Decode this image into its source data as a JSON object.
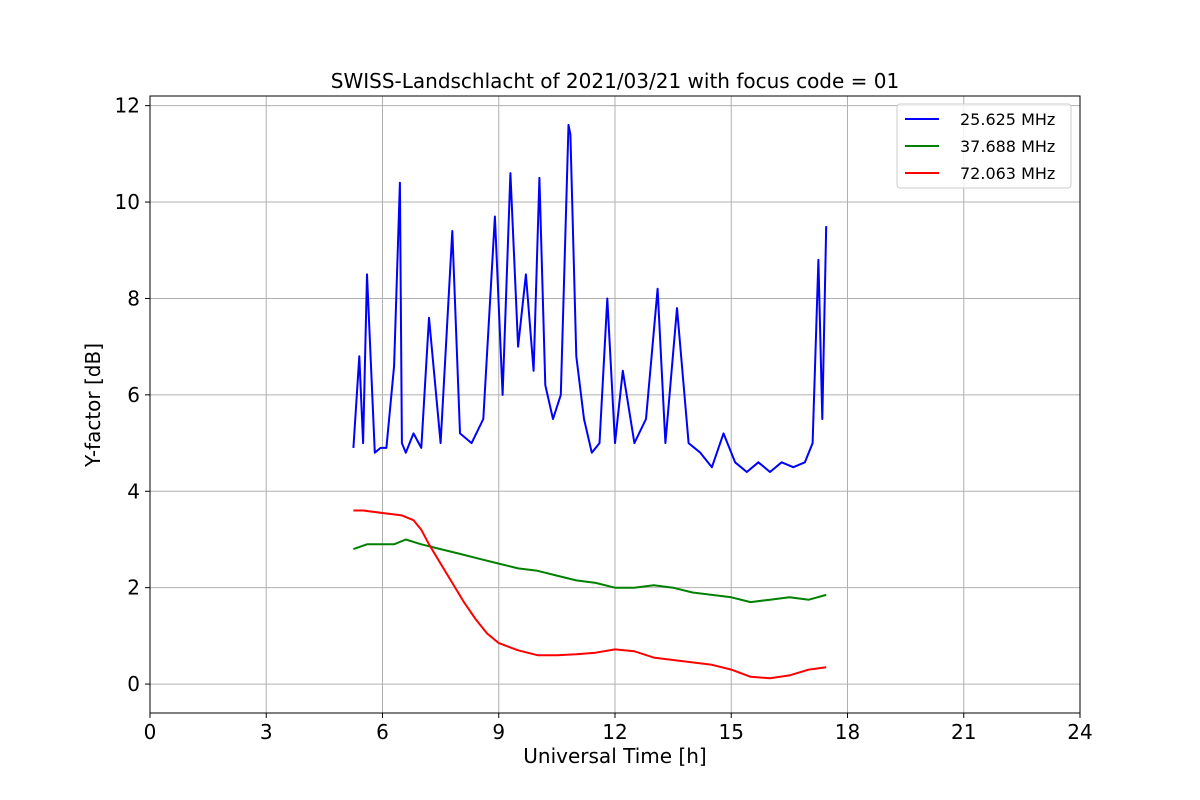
{
  "chart_data": {
    "type": "line",
    "title": "SWISS-Landschlacht of 2021/03/21 with focus code = 01",
    "xlabel": "Universal Time [h]",
    "ylabel": "Y-factor [dB]",
    "xlim": [
      0,
      24
    ],
    "ylim": [
      -0.6,
      12.2
    ],
    "xticks": [
      "0",
      "3",
      "6",
      "9",
      "12",
      "15",
      "18",
      "21",
      "24"
    ],
    "yticks": [
      "0",
      "2",
      "4",
      "6",
      "8",
      "10",
      "12"
    ],
    "grid": true,
    "legend_position": "top-right",
    "series": [
      {
        "name": "25.625 MHz",
        "color": "#0000ff",
        "x": [
          5.25,
          5.4,
          5.5,
          5.6,
          5.8,
          5.95,
          6.1,
          6.3,
          6.45,
          6.5,
          6.6,
          6.8,
          7.0,
          7.2,
          7.5,
          7.8,
          8.0,
          8.3,
          8.6,
          8.9,
          9.1,
          9.3,
          9.5,
          9.7,
          9.9,
          10.05,
          10.2,
          10.4,
          10.6,
          10.8,
          10.85,
          11.0,
          11.2,
          11.4,
          11.6,
          11.8,
          12.0,
          12.2,
          12.5,
          12.8,
          13.1,
          13.3,
          13.6,
          13.9,
          14.2,
          14.5,
          14.8,
          15.1,
          15.4,
          15.7,
          16.0,
          16.3,
          16.6,
          16.9,
          17.1,
          17.25,
          17.35,
          17.45
        ],
        "values": [
          4.9,
          6.8,
          5.0,
          8.5,
          4.8,
          4.9,
          4.9,
          6.6,
          10.4,
          5.0,
          4.8,
          5.2,
          4.9,
          7.6,
          5.0,
          9.4,
          5.2,
          5.0,
          5.5,
          9.7,
          6.0,
          10.6,
          7.0,
          8.5,
          6.5,
          10.5,
          6.2,
          5.5,
          6.0,
          11.6,
          11.4,
          6.8,
          5.5,
          4.8,
          5.0,
          8.0,
          5.0,
          6.5,
          5.0,
          5.5,
          8.2,
          5.0,
          7.8,
          5.0,
          4.8,
          4.5,
          5.2,
          4.6,
          4.4,
          4.6,
          4.4,
          4.6,
          4.5,
          4.6,
          5.0,
          8.8,
          5.5,
          9.5
        ]
      },
      {
        "name": "37.688 MHz",
        "color": "#008000",
        "x": [
          5.25,
          5.6,
          6.0,
          6.3,
          6.6,
          7.0,
          7.5,
          8.0,
          8.5,
          9.0,
          9.5,
          10.0,
          10.5,
          11.0,
          11.5,
          12.0,
          12.5,
          13.0,
          13.5,
          14.0,
          14.5,
          15.0,
          15.5,
          16.0,
          16.5,
          17.0,
          17.45
        ],
        "values": [
          2.8,
          2.9,
          2.9,
          2.9,
          3.0,
          2.9,
          2.8,
          2.7,
          2.6,
          2.5,
          2.4,
          2.35,
          2.25,
          2.15,
          2.1,
          2.0,
          2.0,
          2.05,
          2.0,
          1.9,
          1.85,
          1.8,
          1.7,
          1.75,
          1.8,
          1.75,
          1.85
        ]
      },
      {
        "name": "72.063 MHz",
        "color": "#ff0000",
        "x": [
          5.25,
          5.5,
          6.0,
          6.5,
          6.8,
          7.0,
          7.2,
          7.5,
          7.8,
          8.1,
          8.4,
          8.7,
          9.0,
          9.5,
          10.0,
          10.5,
          11.0,
          11.5,
          12.0,
          12.5,
          13.0,
          13.5,
          14.0,
          14.5,
          15.0,
          15.5,
          16.0,
          16.5,
          17.0,
          17.45
        ],
        "values": [
          3.6,
          3.6,
          3.55,
          3.5,
          3.4,
          3.2,
          2.9,
          2.5,
          2.1,
          1.7,
          1.35,
          1.05,
          0.85,
          0.7,
          0.6,
          0.6,
          0.62,
          0.65,
          0.72,
          0.68,
          0.55,
          0.5,
          0.45,
          0.4,
          0.3,
          0.15,
          0.12,
          0.18,
          0.3,
          0.35
        ]
      }
    ]
  }
}
